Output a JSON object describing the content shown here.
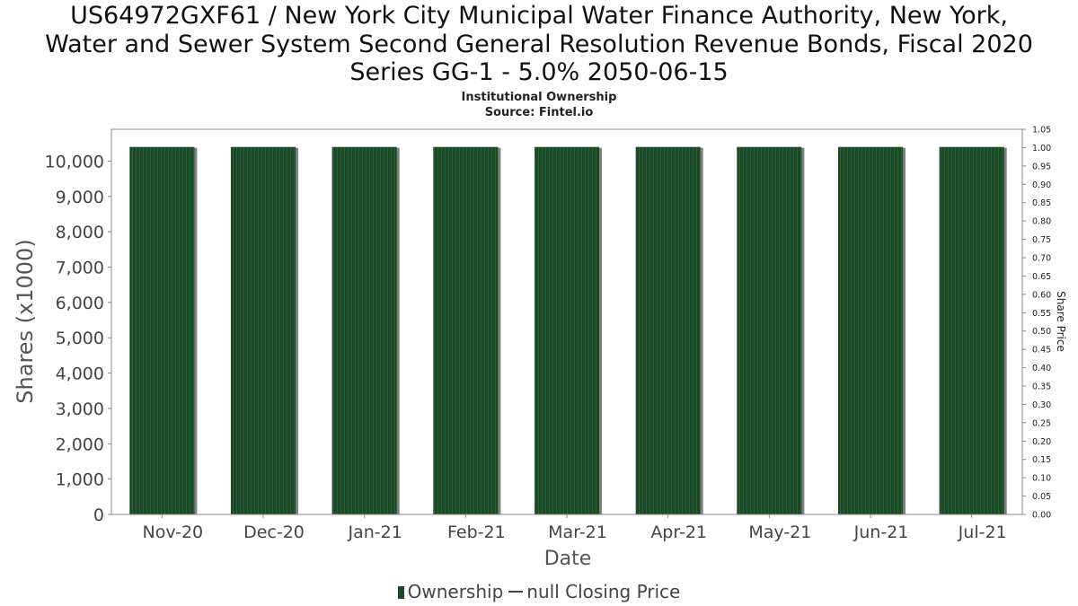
{
  "title_lines": [
    "US64972GXF61 / New York City Municipal Water Finance Authority, New York,",
    "Water and Sewer System Second General Resolution Revenue Bonds, Fiscal 2020",
    "Series GG-1 - 5.0% 2050-06-15"
  ],
  "subtitle_lines": [
    "Institutional Ownership",
    "Source: Fintel.io"
  ],
  "legend": {
    "ownership": "Ownership",
    "price": "null Closing Price"
  },
  "colors": {
    "bar": "#1a4a25",
    "bar_stripe": "#2f5f38",
    "bar_shadow": "#808080",
    "axis": "#888888"
  },
  "chart_data": {
    "type": "bar",
    "xlabel": "Date",
    "ylabel": "Shares (x1000)",
    "y2label": "Share Price",
    "categories": [
      "Nov-20",
      "Dec-20",
      "Jan-21",
      "Feb-21",
      "Mar-21",
      "Apr-21",
      "May-21",
      "Jun-21",
      "Jul-21"
    ],
    "series": [
      {
        "name": "Ownership",
        "values": [
          10400,
          10400,
          10400,
          10400,
          10400,
          10400,
          10400,
          10400,
          10400
        ]
      }
    ],
    "ylim": [
      0,
      10900
    ],
    "yticks": [
      0,
      1000,
      2000,
      3000,
      4000,
      5000,
      6000,
      7000,
      8000,
      9000,
      10000
    ],
    "ytick_labels": [
      "0",
      "1,000",
      "2,000",
      "3,000",
      "4,000",
      "5,000",
      "6,000",
      "7,000",
      "8,000",
      "9,000",
      "10,000"
    ],
    "y2lim": [
      0,
      1.05
    ],
    "y2tick_labels": [
      "0.00",
      "0.05",
      "0.10",
      "0.15",
      "0.20",
      "0.25",
      "0.30",
      "0.35",
      "0.40",
      "0.45",
      "0.50",
      "0.55",
      "0.60",
      "0.65",
      "0.70",
      "0.75",
      "0.80",
      "0.85",
      "0.90",
      "0.95",
      "1.00",
      "1.05"
    ],
    "grid": false,
    "legend_position": "bottom"
  }
}
